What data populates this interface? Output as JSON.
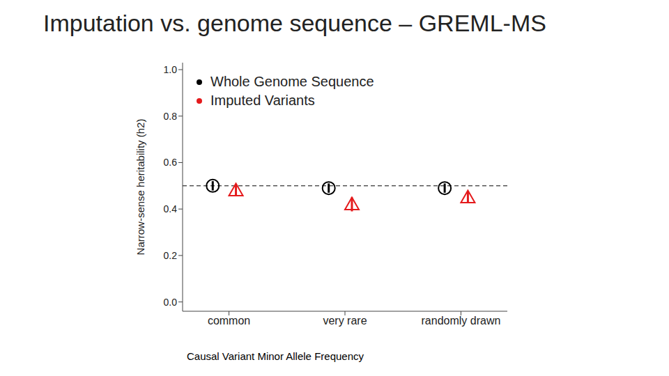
{
  "chart_data": {
    "type": "scatter",
    "title": "Imputation vs. genome sequence – GREML-MS",
    "x_label": "Causal Variant Minor Allele Frequency",
    "y_label": "Narrow-sense heritability (h2)",
    "categories": [
      "common",
      "very rare",
      "randomly drawn"
    ],
    "series": [
      {
        "name": "Whole Genome Sequence",
        "color": "#000000",
        "marker": "circle",
        "values": [
          0.5,
          0.49,
          0.49
        ],
        "errors": [
          0.02,
          0.02,
          0.02
        ]
      },
      {
        "name": "Imputed Variants",
        "color": "#e41a1c",
        "marker": "triangle",
        "values": [
          0.48,
          0.42,
          0.45
        ],
        "errors": [
          0.025,
          0.03,
          0.025
        ]
      }
    ],
    "ylim": [
      -0.04,
      1.03
    ],
    "yticks": [
      {
        "value": 0,
        "label": "0.0"
      },
      0.2,
      0.4,
      0.6,
      0.8,
      {
        "value": 1,
        "label": "1.0"
      }
    ],
    "hline": 0.5,
    "legend": "upper left"
  }
}
